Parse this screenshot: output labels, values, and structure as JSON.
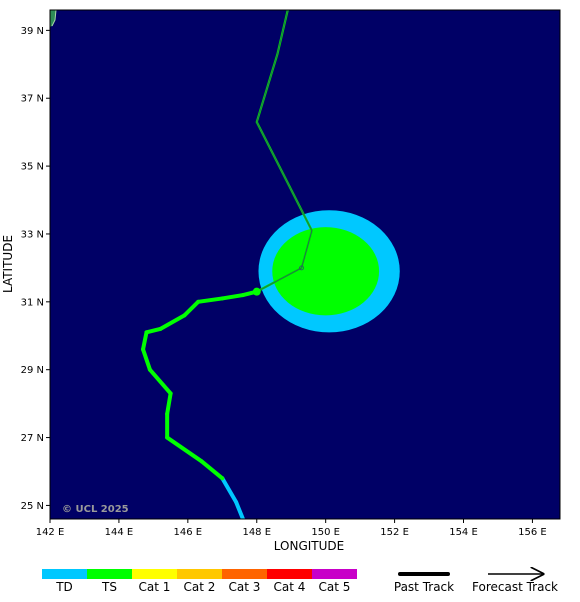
{
  "map": {
    "copyright": "© UCL 2025",
    "x_axis_title": "LONGITUDE",
    "y_axis_title": "LATITUDE",
    "lon_range": [
      142,
      156.8
    ],
    "lat_range": [
      24.6,
      39.6
    ],
    "ocean_color": "#000066",
    "land_color": "#2e8b57",
    "lon_ticks": [
      {
        "value": 142,
        "label": "142 E"
      },
      {
        "value": 144,
        "label": "144 E"
      },
      {
        "value": 146,
        "label": "146 E"
      },
      {
        "value": 148,
        "label": "148 E"
      },
      {
        "value": 150,
        "label": "150 E"
      },
      {
        "value": 152,
        "label": "152 E"
      },
      {
        "value": 154,
        "label": "154 E"
      },
      {
        "value": 156,
        "label": "156 E"
      }
    ],
    "lat_ticks": [
      {
        "value": 25,
        "label": "25 N"
      },
      {
        "value": 27,
        "label": "27 N"
      },
      {
        "value": 29,
        "label": "29 N"
      },
      {
        "value": 31,
        "label": "31 N"
      },
      {
        "value": 33,
        "label": "33 N"
      },
      {
        "value": 35,
        "label": "35 N"
      },
      {
        "value": 37,
        "label": "37 N"
      },
      {
        "value": 39,
        "label": "39 N"
      }
    ],
    "past_track": [
      {
        "lon": 147.6,
        "lat": 24.6,
        "cat": "TD"
      },
      {
        "lon": 147.4,
        "lat": 25.1,
        "cat": "TD"
      },
      {
        "lon": 147.0,
        "lat": 25.8,
        "cat": "TD"
      },
      {
        "lon": 146.4,
        "lat": 26.3,
        "cat": "TS"
      },
      {
        "lon": 145.4,
        "lat": 27.0,
        "cat": "TS"
      },
      {
        "lon": 145.4,
        "lat": 27.7,
        "cat": "TS"
      },
      {
        "lon": 145.5,
        "lat": 28.3,
        "cat": "TS"
      },
      {
        "lon": 144.9,
        "lat": 29.0,
        "cat": "TS"
      },
      {
        "lon": 144.7,
        "lat": 29.6,
        "cat": "TS"
      },
      {
        "lon": 144.8,
        "lat": 30.1,
        "cat": "TS"
      },
      {
        "lon": 145.2,
        "lat": 30.2,
        "cat": "TS"
      },
      {
        "lon": 145.9,
        "lat": 30.6,
        "cat": "TS"
      },
      {
        "lon": 146.3,
        "lat": 31.0,
        "cat": "TS"
      },
      {
        "lon": 147.0,
        "lat": 31.1,
        "cat": "TS"
      },
      {
        "lon": 147.6,
        "lat": 31.2,
        "cat": "TS"
      },
      {
        "lon": 148.0,
        "lat": 31.3,
        "cat": "TS"
      }
    ],
    "current_position": {
      "lon": 148.0,
      "lat": 31.3,
      "cat": "TS"
    },
    "forecast_track": [
      {
        "lon": 148.0,
        "lat": 31.3
      },
      {
        "lon": 149.3,
        "lat": 32.0
      },
      {
        "lon": 149.6,
        "lat": 33.1
      },
      {
        "lon": 148.9,
        "lat": 34.5
      },
      {
        "lon": 148.0,
        "lat": 36.3
      },
      {
        "lon": 148.6,
        "lat": 38.3
      },
      {
        "lon": 148.9,
        "lat": 39.6
      }
    ],
    "forecast_cone": [
      {
        "lon": 150.1,
        "lat": 31.9,
        "rx_deg": 2.05,
        "ry_deg": 1.8,
        "cat": "TD"
      },
      {
        "lon": 150.0,
        "lat": 31.9,
        "rx_deg": 1.55,
        "ry_deg": 1.3,
        "cat": "TS"
      }
    ]
  },
  "legend": {
    "categories": [
      {
        "label": "TD",
        "color": "#00c8ff"
      },
      {
        "label": "TS",
        "color": "#00ff00"
      },
      {
        "label": "Cat 1",
        "color": "#ffff00"
      },
      {
        "label": "Cat 2",
        "color": "#ffc800"
      },
      {
        "label": "Cat 3",
        "color": "#ff6400"
      },
      {
        "label": "Cat 4",
        "color": "#ff0000"
      },
      {
        "label": "Cat 5",
        "color": "#c800c8"
      }
    ],
    "past_track_label": "Past Track",
    "forecast_track_label": "Forecast Track"
  }
}
